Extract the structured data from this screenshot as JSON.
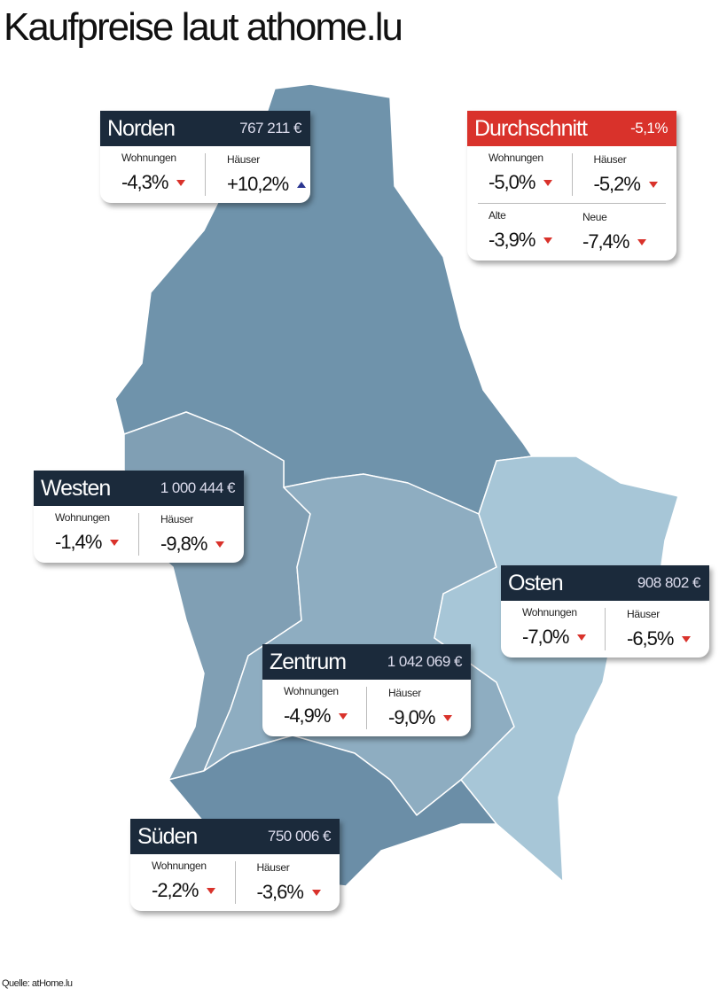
{
  "title": "Kaufpreise laut athome.lu",
  "source": "Quelle: atHome.lu",
  "regions": [
    {
      "name": "Norden",
      "headline": "767 211 €",
      "cells": [
        {
          "label": "Wohnungen",
          "value": "-4,3%"
        },
        {
          "label": "Häuser",
          "value": "+10,2%"
        }
      ]
    },
    {
      "name": "Durchschnitt",
      "headline": "-5,1%",
      "cells": [
        {
          "label": "Wohnungen",
          "value": "-5,0%"
        },
        {
          "label": "Häuser",
          "value": "-5,2%"
        },
        {
          "label": "Alte",
          "value": "-3,9%"
        },
        {
          "label": "Neue",
          "value": "-7,4%"
        }
      ]
    },
    {
      "name": "Westen",
      "headline": "1 000 444 €",
      "cells": [
        {
          "label": "Wohnungen",
          "value": "-1,4%"
        },
        {
          "label": "Häuser",
          "value": "-9,8%"
        }
      ]
    },
    {
      "name": "Osten",
      "headline": "908 802 €",
      "cells": [
        {
          "label": "Wohnungen",
          "value": "-7,0%"
        },
        {
          "label": "Häuser",
          "value": "-6,5%"
        }
      ]
    },
    {
      "name": "Zentrum",
      "headline": "1 042 069 €",
      "cells": [
        {
          "label": "Wohnungen",
          "value": "-4,9%"
        },
        {
          "label": "Häuser",
          "value": "-9,0%"
        }
      ]
    },
    {
      "name": "Süden",
      "headline": "750 006 €",
      "cells": [
        {
          "label": "Wohnungen",
          "value": "-2,2%"
        },
        {
          "label": "Häuser",
          "value": "-3,6%"
        }
      ]
    }
  ]
}
